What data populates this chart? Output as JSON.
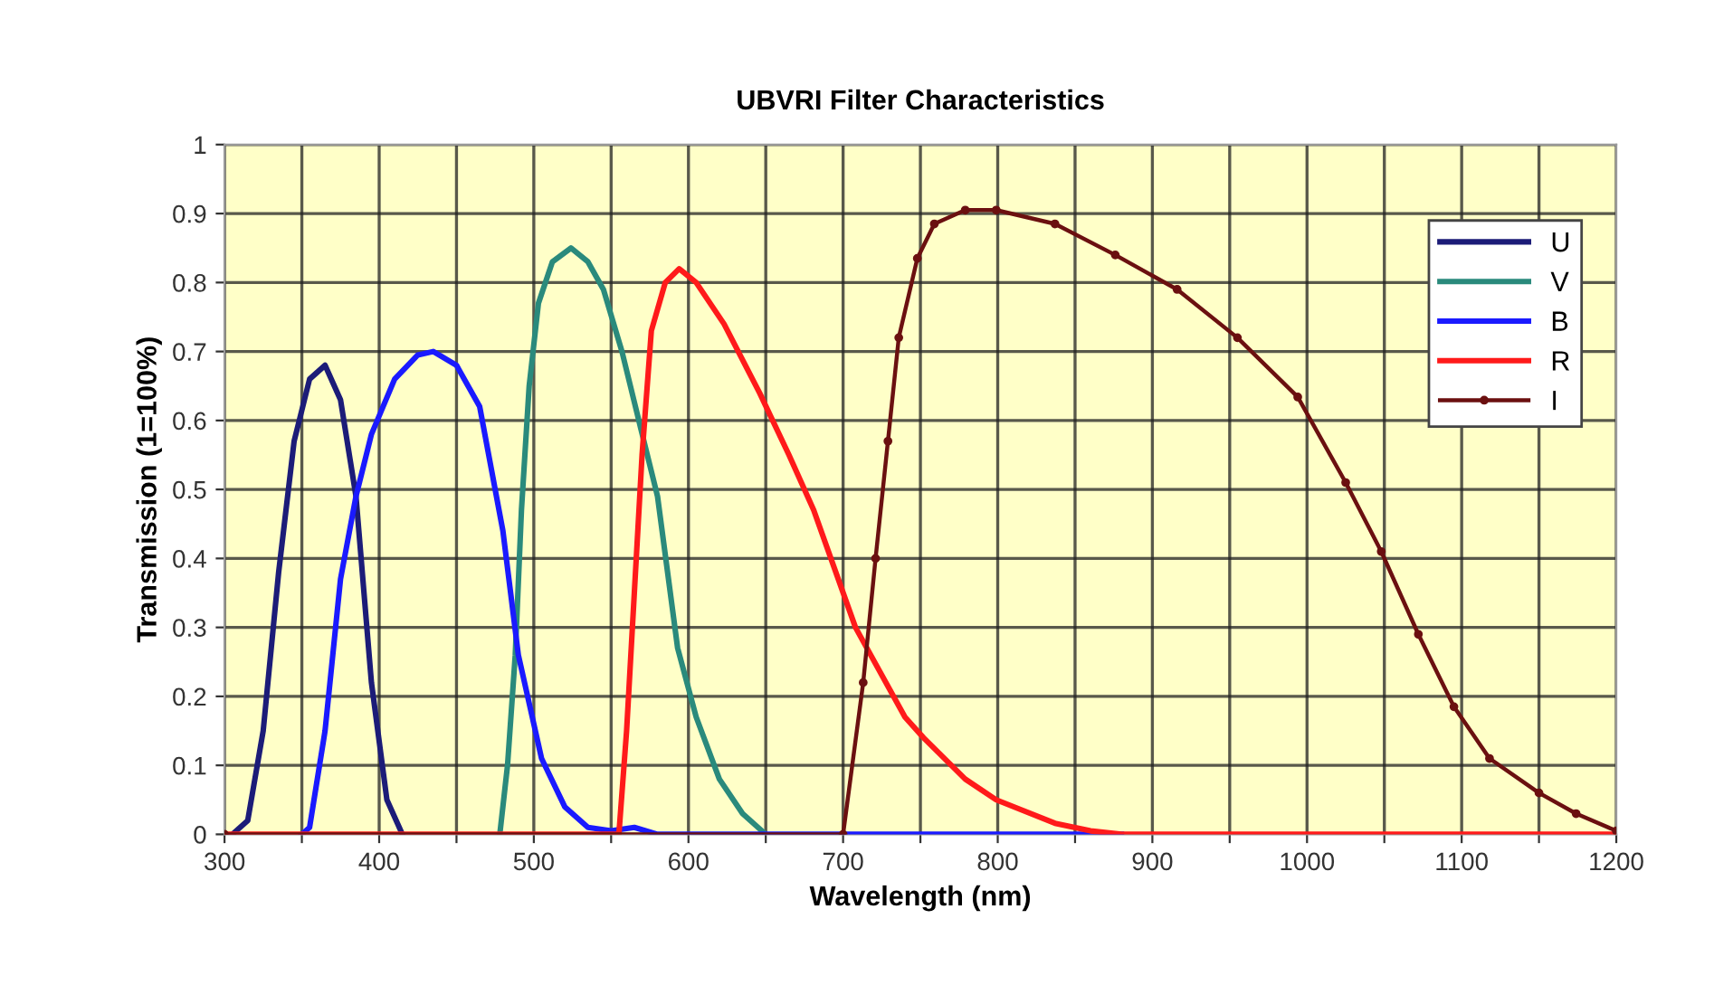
{
  "chart_data": {
    "type": "line",
    "title": "UBVRI Filter Characteristics",
    "xlabel": "Wavelength (nm)",
    "ylabel": "Transmission (1=100%)",
    "xlim": [
      300,
      1200
    ],
    "ylim": [
      0,
      1
    ],
    "xticks": [
      300,
      {
        "value": 350,
        "label": null
      },
      400,
      {
        "value": 450,
        "label": null
      },
      500,
      {
        "value": 550,
        "label": null
      },
      600,
      {
        "value": 650,
        "label": null
      },
      700,
      {
        "value": 750,
        "label": null
      },
      800,
      {
        "value": 850,
        "label": null
      },
      900,
      {
        "value": 950,
        "label": null
      },
      1000,
      {
        "value": 1050,
        "label": null
      },
      1100,
      {
        "value": 1150,
        "label": null
      },
      1200
    ],
    "yticks": [
      0,
      0.1,
      0.2,
      0.3,
      0.4,
      0.5,
      0.6,
      0.7,
      0.8,
      0.9,
      1
    ],
    "grid": true,
    "legend": "top right",
    "line_style": "solid",
    "series": [
      {
        "name": "U",
        "color": "#1c1c78",
        "marker": "none",
        "x": [
          305,
          315,
          325,
          335,
          345,
          355,
          365,
          375,
          385,
          395,
          405,
          415
        ],
        "values": [
          0,
          0.02,
          0.15,
          0.38,
          0.57,
          0.66,
          0.68,
          0.63,
          0.49,
          0.22,
          0.05,
          0
        ]
      },
      {
        "name": "V",
        "color": "#2a8a7c",
        "marker": "none",
        "x": [
          478,
          483,
          488,
          492,
          497,
          503,
          512,
          524,
          535,
          545,
          557,
          569,
          580,
          593,
          605,
          620,
          635,
          650
        ],
        "values": [
          0,
          0.1,
          0.26,
          0.47,
          0.65,
          0.77,
          0.83,
          0.85,
          0.83,
          0.79,
          0.7,
          0.59,
          0.49,
          0.27,
          0.17,
          0.08,
          0.03,
          0
        ]
      },
      {
        "name": "B",
        "color": "#1a1aff",
        "marker": "none",
        "x": [
          350,
          355,
          365,
          375,
          385,
          395,
          410,
          425,
          435,
          450,
          465,
          480,
          490,
          505,
          520,
          535,
          550,
          565,
          580,
          880
        ],
        "values": [
          0,
          0.01,
          0.15,
          0.37,
          0.49,
          0.58,
          0.66,
          0.695,
          0.7,
          0.68,
          0.62,
          0.44,
          0.26,
          0.11,
          0.04,
          0.01,
          0.005,
          0.01,
          0,
          0
        ]
      },
      {
        "name": "R",
        "color": "#ff1a1a",
        "marker": "none",
        "x": [
          300,
          555,
          560,
          565,
          570,
          576,
          585,
          594,
          605,
          623,
          646,
          665,
          681,
          708,
          740,
          752,
          779,
          799,
          837,
          860,
          880,
          1200
        ],
        "values": [
          0,
          0,
          0.15,
          0.35,
          0.55,
          0.73,
          0.8,
          0.82,
          0.8,
          0.74,
          0.64,
          0.55,
          0.47,
          0.3,
          0.17,
          0.14,
          0.08,
          0.05,
          0.016,
          0.005,
          0,
          0
        ]
      },
      {
        "name": "I",
        "color": "#6b1010",
        "marker": "circle",
        "x": [
          300,
          700,
          713,
          721,
          729,
          736,
          748,
          759,
          779,
          799,
          837,
          876,
          916,
          955,
          994,
          1025,
          1048,
          1072,
          1095,
          1118,
          1150,
          1174,
          1200
        ],
        "values": [
          0,
          0,
          0.22,
          0.4,
          0.57,
          0.72,
          0.835,
          0.885,
          0.905,
          0.905,
          0.885,
          0.84,
          0.79,
          0.72,
          0.634,
          0.51,
          0.41,
          0.29,
          0.185,
          0.11,
          0.06,
          0.03,
          0.005
        ]
      }
    ]
  }
}
